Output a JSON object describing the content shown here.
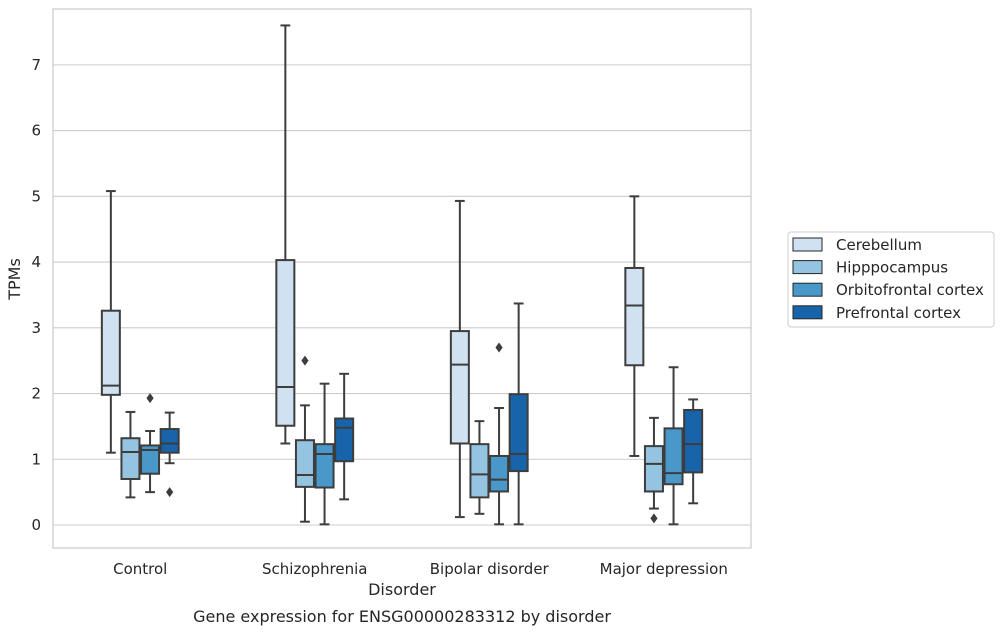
{
  "caption": "Gene expression for ENSG00000283312 by disorder",
  "chart_data": {
    "type": "box",
    "xlabel": "Disorder",
    "ylabel": "TPMs",
    "ylim": [
      -0.35,
      7.85
    ],
    "yticks": [
      0,
      1,
      2,
      3,
      4,
      5,
      6,
      7
    ],
    "grid": "horizontal",
    "legend_position": "right",
    "categories": [
      "Control",
      "Schizophrenia",
      "Bipolar disorder",
      "Major depression"
    ],
    "series": [
      {
        "name": "Cerebellum",
        "color": "#d0e1f2",
        "boxes": [
          {
            "whisker_low": 1.1,
            "q1": 1.98,
            "median": 2.12,
            "q3": 3.26,
            "whisker_high": 5.08,
            "outliers": []
          },
          {
            "whisker_low": 1.24,
            "q1": 1.51,
            "median": 2.1,
            "q3": 4.03,
            "whisker_high": 7.6,
            "outliers": []
          },
          {
            "whisker_low": 0.12,
            "q1": 1.24,
            "median": 2.44,
            "q3": 2.95,
            "whisker_high": 4.93,
            "outliers": []
          },
          {
            "whisker_low": 1.05,
            "q1": 2.43,
            "median": 3.34,
            "q3": 3.91,
            "whisker_high": 5.0,
            "outliers": []
          }
        ]
      },
      {
        "name": "Hipppocampus",
        "color": "#94c4df",
        "boxes": [
          {
            "whisker_low": 0.42,
            "q1": 0.7,
            "median": 1.11,
            "q3": 1.32,
            "whisker_high": 1.72,
            "outliers": []
          },
          {
            "whisker_low": 0.05,
            "q1": 0.58,
            "median": 0.76,
            "q3": 1.29,
            "whisker_high": 1.82,
            "outliers": [
              2.5
            ]
          },
          {
            "whisker_low": 0.17,
            "q1": 0.42,
            "median": 0.77,
            "q3": 1.23,
            "whisker_high": 1.58,
            "outliers": []
          },
          {
            "whisker_low": 0.25,
            "q1": 0.51,
            "median": 0.93,
            "q3": 1.2,
            "whisker_high": 1.63,
            "outliers": [
              0.1
            ]
          }
        ]
      },
      {
        "name": "Orbitofrontal cortex",
        "color": "#4a98c9",
        "boxes": [
          {
            "whisker_low": 0.5,
            "q1": 0.78,
            "median": 1.14,
            "q3": 1.21,
            "whisker_high": 1.43,
            "outliers": [
              1.93
            ]
          },
          {
            "whisker_low": 0.01,
            "q1": 0.57,
            "median": 1.08,
            "q3": 1.23,
            "whisker_high": 2.15,
            "outliers": []
          },
          {
            "whisker_low": 0.01,
            "q1": 0.51,
            "median": 0.69,
            "q3": 1.05,
            "whisker_high": 1.78,
            "outliers": [
              2.7
            ]
          },
          {
            "whisker_low": 0.01,
            "q1": 0.62,
            "median": 0.79,
            "q3": 1.47,
            "whisker_high": 2.4,
            "outliers": []
          }
        ]
      },
      {
        "name": "Prefrontal cortex",
        "color": "#1764ab",
        "boxes": [
          {
            "whisker_low": 0.94,
            "q1": 1.1,
            "median": 1.24,
            "q3": 1.46,
            "whisker_high": 1.71,
            "outliers": [
              0.5
            ]
          },
          {
            "whisker_low": 0.39,
            "q1": 0.97,
            "median": 1.48,
            "q3": 1.62,
            "whisker_high": 2.3,
            "outliers": []
          },
          {
            "whisker_low": 0.01,
            "q1": 0.82,
            "median": 1.08,
            "q3": 1.99,
            "whisker_high": 3.37,
            "outliers": []
          },
          {
            "whisker_low": 0.33,
            "q1": 0.8,
            "median": 1.23,
            "q3": 1.75,
            "whisker_high": 1.91,
            "outliers": []
          }
        ]
      }
    ]
  }
}
